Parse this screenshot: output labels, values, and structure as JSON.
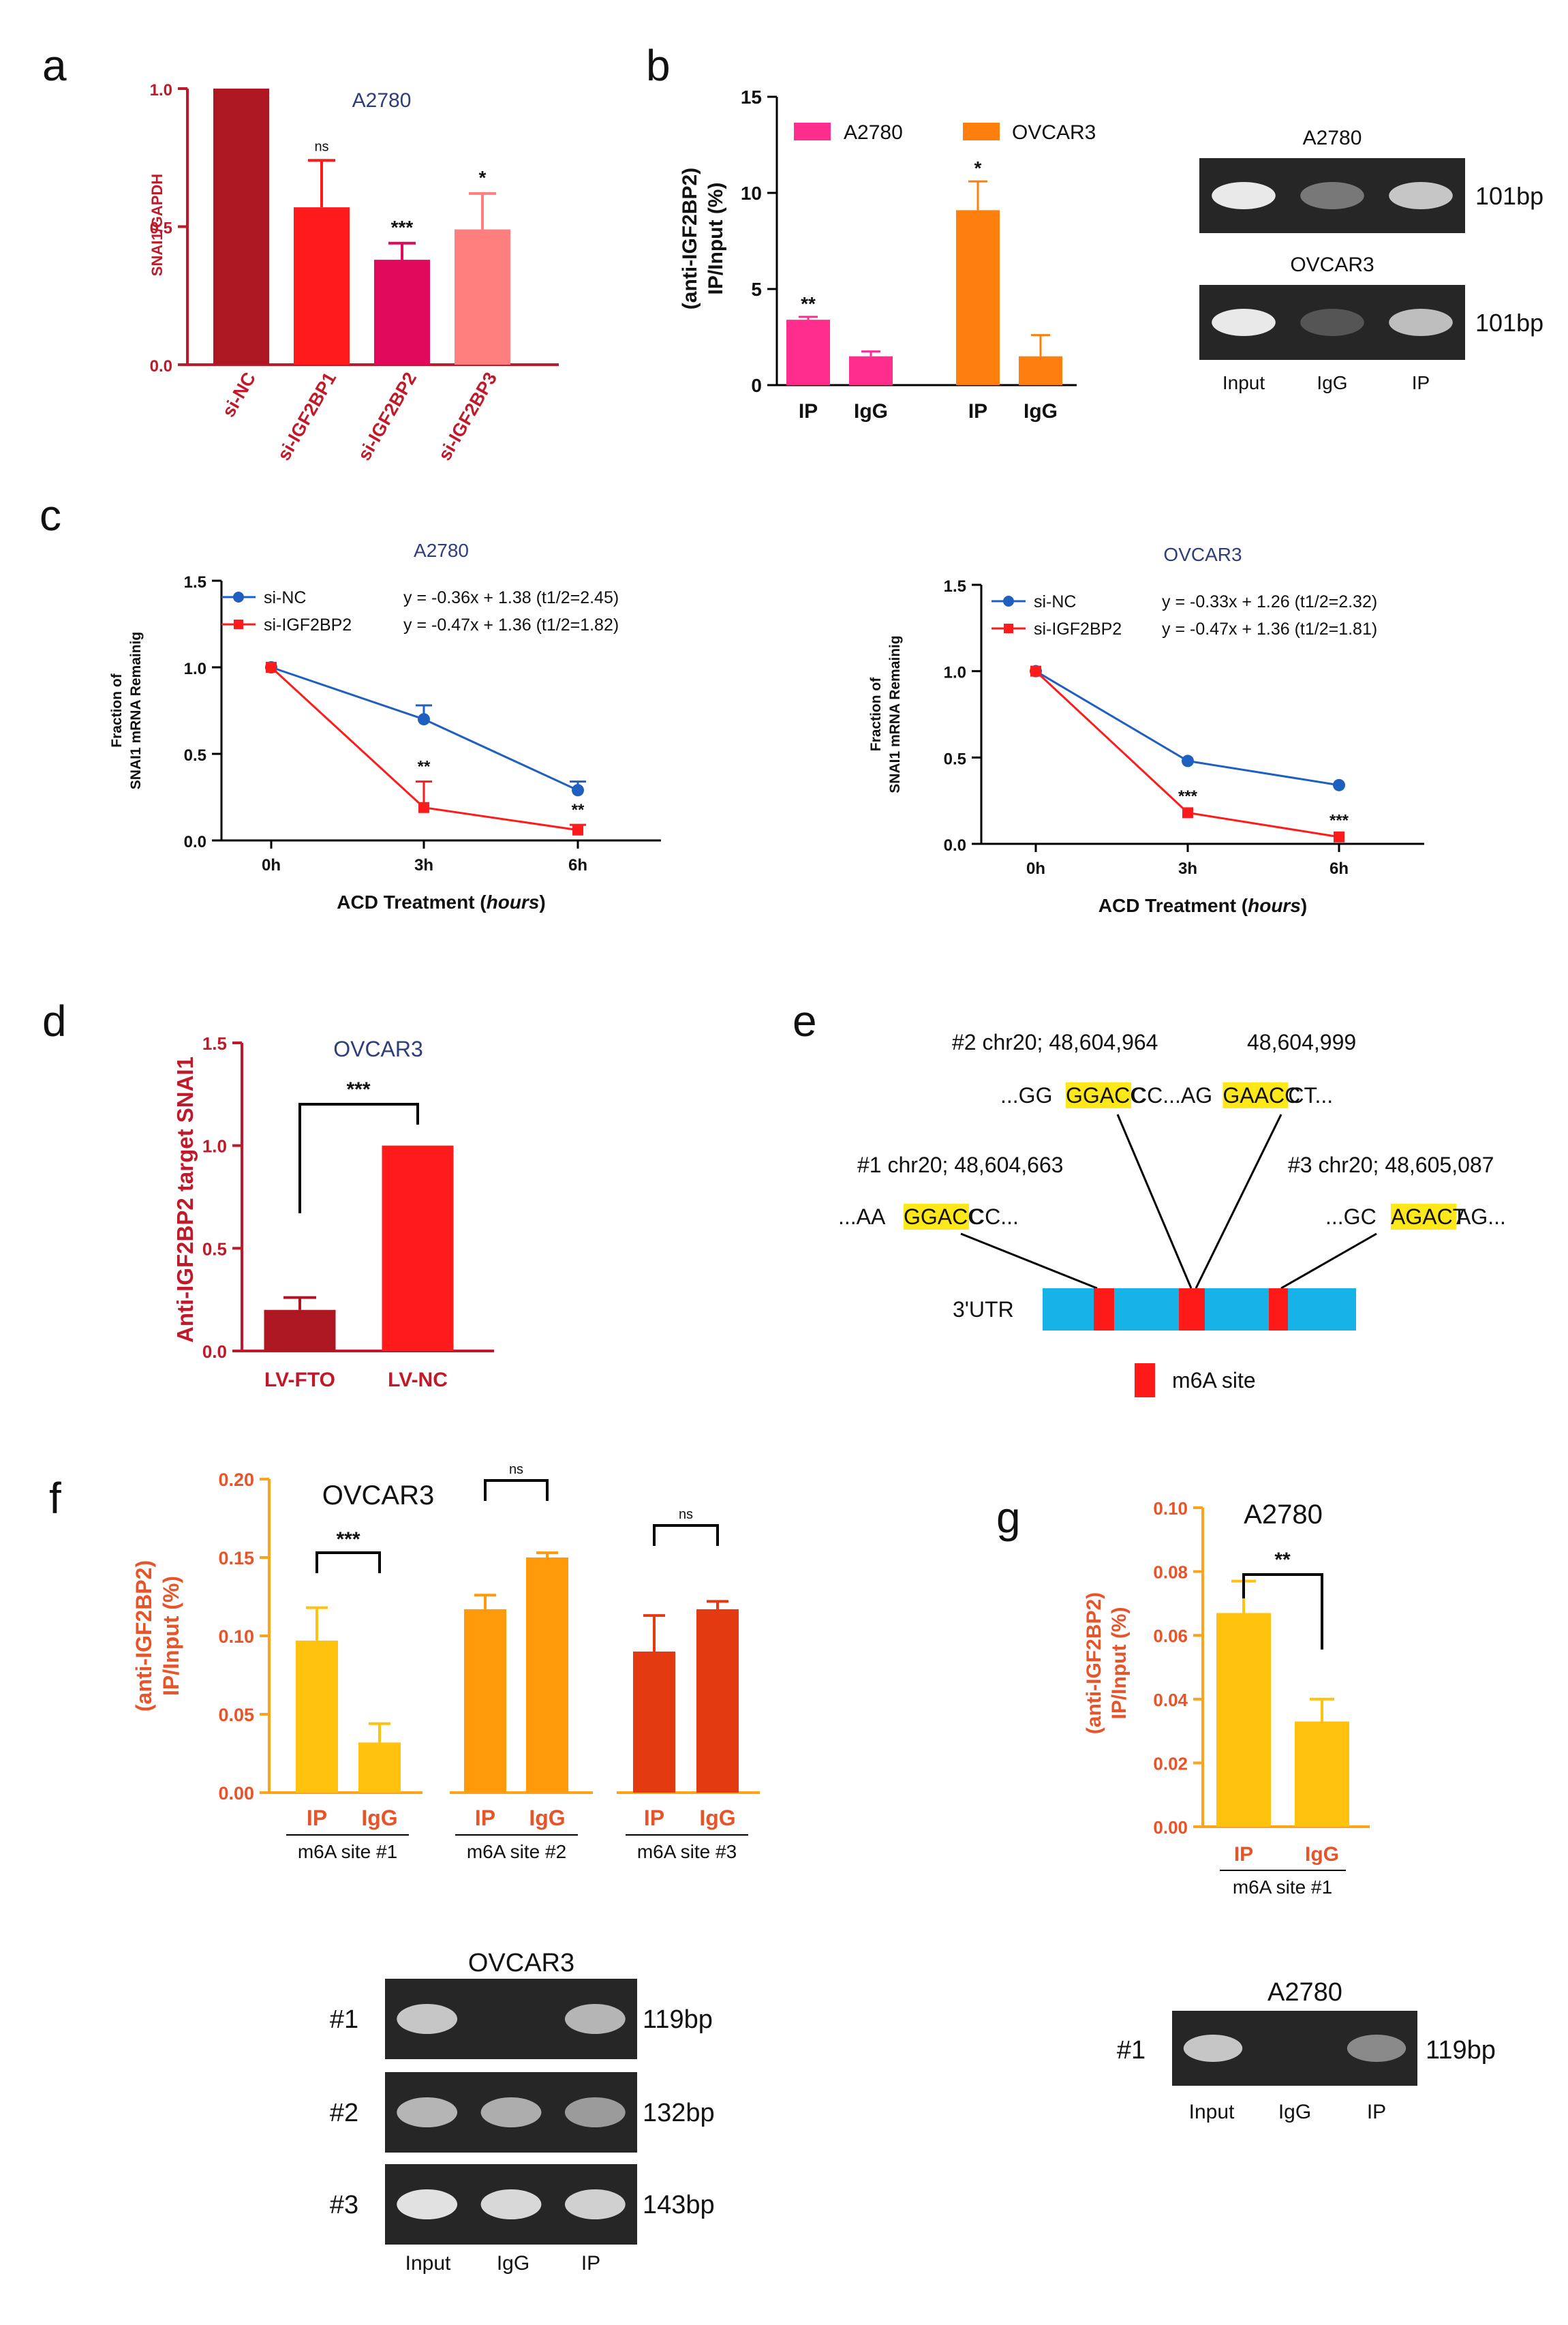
{
  "panel_labels": [
    "a",
    "b",
    "c",
    "d",
    "e",
    "f",
    "g"
  ],
  "colors": {
    "dark_red": "#ad1722",
    "red": "#ff1b1b",
    "crimson": "#e0095c",
    "salmon": "#ff7f7f",
    "pink": "#ff2e8e",
    "orange": "#ff7f0e",
    "blue": "#1f5fbf",
    "line_red": "#ff1b1b",
    "yellow": "#ffc20e",
    "orange2": "#ff9a0a",
    "brick": "#e33a12",
    "axis_red": "#c01a2a",
    "axis_orange": "#ffa31a",
    "label_orange": "#e8542a",
    "title_navy": "#2f3e7a",
    "utr_blue": "#17b2e6",
    "m6a_red": "#ff1a1a",
    "highlight": "#ffe81a"
  },
  "chart_data": [
    {
      "id": "a",
      "type": "bar",
      "title": "A2780",
      "ylabel": "SNAI1/GAPDH",
      "ylim": [
        0,
        1.0
      ],
      "yticks": [
        "0.0",
        "0.5",
        "1.0"
      ],
      "yticks_values": [
        0,
        0.5,
        1.0
      ],
      "categories": [
        "si-NC",
        "si-IGF2BP1",
        "si-IGF2BP2",
        "si-IGF2BP3"
      ],
      "values": [
        1.0,
        0.57,
        0.38,
        0.49
      ],
      "errors": [
        0,
        0.17,
        0.06,
        0.13
      ],
      "sig": [
        "",
        "ns",
        "***",
        "*"
      ]
    },
    {
      "id": "b",
      "type": "bar",
      "ylabel_line1": "(anti-IGF2BP2)",
      "ylabel_line2": "IP/Input (%)",
      "ylim": [
        0,
        15
      ],
      "yticks": [
        "0",
        "5",
        "10",
        "15"
      ],
      "yticks_values": [
        0,
        5,
        10,
        15
      ],
      "legend": [
        "A2780",
        "OVCAR3"
      ],
      "categories": [
        "IP",
        "IgG",
        "IP",
        "IgG"
      ],
      "values": [
        3.4,
        1.5,
        9.1,
        1.5
      ],
      "errors": [
        0.15,
        0.25,
        1.5,
        1.1
      ],
      "sig": [
        "**",
        "",
        "*",
        ""
      ]
    },
    {
      "id": "c1",
      "type": "line",
      "title": "A2780",
      "ylabel_line1": "Fraction of",
      "ylabel_line2": "SNAI1 mRNA Remainig",
      "xlabel_main": "ACD Treatment (",
      "xlabel_italic": "hours",
      "xlabel_end": ")",
      "ylim": [
        0,
        1.5
      ],
      "yticks": [
        "0.0",
        "0.5",
        "1.0",
        "1.5"
      ],
      "yticks_values": [
        0,
        0.5,
        1.0,
        1.5
      ],
      "x": [
        "0h",
        "3h",
        "6h"
      ],
      "series": [
        {
          "name": "si-NC",
          "values": [
            1.0,
            0.7,
            0.29
          ],
          "errors": [
            0,
            0.08,
            0.05
          ],
          "equation": "y = -0.36x + 1.38 (t1/2=2.45)"
        },
        {
          "name": "si-IGF2BP2",
          "values": [
            1.0,
            0.19,
            0.06
          ],
          "errors": [
            0,
            0.15,
            0.03
          ],
          "equation": "y = -0.47x + 1.36 (t1/2=1.82)"
        }
      ],
      "sig": [
        "",
        "**",
        "**"
      ]
    },
    {
      "id": "c2",
      "type": "line",
      "title": "OVCAR3",
      "ylabel_line1": "Fraction of",
      "ylabel_line2": "SNAI1 mRNA Remainig",
      "xlabel_main": "ACD Treatment (",
      "xlabel_italic": "hours",
      "xlabel_end": ")",
      "ylim": [
        0,
        1.5
      ],
      "yticks": [
        "0.0",
        "0.5",
        "1.0",
        "1.5"
      ],
      "yticks_values": [
        0,
        0.5,
        1.0,
        1.5
      ],
      "x": [
        "0h",
        "3h",
        "6h"
      ],
      "series": [
        {
          "name": "si-NC",
          "values": [
            1.0,
            0.48,
            0.34
          ],
          "errors": [
            0,
            0.01,
            0.01
          ],
          "equation": "y = -0.33x + 1.26 (t1/2=2.32)"
        },
        {
          "name": "si-IGF2BP2",
          "values": [
            1.0,
            0.18,
            0.04
          ],
          "errors": [
            0,
            0.01,
            0.01
          ],
          "equation": "y = -0.47x + 1.36 (t1/2=1.81)"
        }
      ],
      "sig": [
        "",
        "***",
        "***"
      ]
    },
    {
      "id": "d",
      "type": "bar",
      "title": "OVCAR3",
      "ylabel": "Anti-IGF2BP2 target SNAI1",
      "ylim": [
        0,
        1.5
      ],
      "yticks": [
        "0.0",
        "0.5",
        "1.0",
        "1.5"
      ],
      "yticks_values": [
        0,
        0.5,
        1.0,
        1.5
      ],
      "categories": [
        "LV-FTO",
        "LV-NC"
      ],
      "values": [
        0.2,
        1.0
      ],
      "errors": [
        0.06,
        0
      ],
      "sig": "***"
    },
    {
      "id": "f",
      "type": "bar",
      "title": "OVCAR3",
      "ylabel_line1": "(anti-IGF2BP2)",
      "ylabel_line2": "IP/Input (%)",
      "ylim": [
        0,
        0.2
      ],
      "yticks": [
        "0.00",
        "0.05",
        "0.10",
        "0.15",
        "0.20"
      ],
      "yticks_values": [
        0,
        0.05,
        0.1,
        0.15,
        0.2
      ],
      "categories": [
        "IP",
        "IgG",
        "IP",
        "IgG",
        "IP",
        "IgG"
      ],
      "values": [
        0.097,
        0.032,
        0.117,
        0.15,
        0.09,
        0.117
      ],
      "errors": [
        0.021,
        0.012,
        0.009,
        0.003,
        0.023,
        0.005
      ],
      "groups": [
        "m6A site #1",
        "m6A site #2",
        "m6A site #3"
      ],
      "sig": [
        "***",
        "ns",
        "ns"
      ]
    },
    {
      "id": "g",
      "type": "bar",
      "title": "A2780",
      "ylabel_line1": "(anti-IGF2BP2)",
      "ylabel_line2": "IP/Input (%)",
      "ylim": [
        0,
        0.1
      ],
      "yticks": [
        "0.00",
        "0.02",
        "0.04",
        "0.06",
        "0.08",
        "0.10"
      ],
      "yticks_values": [
        0,
        0.02,
        0.04,
        0.06,
        0.08,
        0.1
      ],
      "categories": [
        "IP",
        "IgG"
      ],
      "values": [
        0.067,
        0.033
      ],
      "errors": [
        0.01,
        0.007
      ],
      "groups": [
        "m6A site #1"
      ],
      "sig": "**"
    }
  ],
  "gel_b": {
    "rows": [
      {
        "title": "A2780",
        "size": "101bp",
        "bands": [
          1.0,
          0.35,
          0.8
        ]
      },
      {
        "title": "OVCAR3",
        "size": "101bp",
        "bands": [
          1.0,
          0.15,
          0.75
        ]
      }
    ],
    "lanes": [
      "Input",
      "IgG",
      "IP"
    ]
  },
  "gel_f": {
    "title": "OVCAR3",
    "rows": [
      {
        "label": "#1",
        "size": "119bp",
        "bands": [
          0.8,
          0.0,
          0.7
        ]
      },
      {
        "label": "#2",
        "size": "132bp",
        "bands": [
          0.7,
          0.65,
          0.55
        ]
      },
      {
        "label": "#3",
        "size": "143bp",
        "bands": [
          0.95,
          0.9,
          0.85
        ]
      }
    ],
    "lanes": [
      "Input",
      "IgG",
      "IP"
    ]
  },
  "gel_g": {
    "title": "A2780",
    "rows": [
      {
        "label": "#1",
        "size": "119bp",
        "bands": [
          0.8,
          0.0,
          0.45
        ]
      }
    ],
    "lanes": [
      "Input",
      "IgG",
      "IP"
    ]
  },
  "panel_e": {
    "site2": "#2 chr20; 48,604,964",
    "site2b": "48,604,999",
    "seq2": [
      {
        "t": "...GG",
        "h": false
      },
      {
        "t": "GGACC",
        "h": true
      },
      {
        "t": "CC...AG",
        "h": false
      },
      {
        "t": "GAACC",
        "h": true
      },
      {
        "t": "CT...",
        "h": false
      }
    ],
    "site1": "#1 chr20; 48,604,663",
    "seq1": [
      {
        "t": "...AA",
        "h": false
      },
      {
        "t": "GGACC",
        "h": true
      },
      {
        "t": "CC...",
        "h": false
      }
    ],
    "site3": "#3 chr20; 48,605,087",
    "seq3": [
      {
        "t": "...GC",
        "h": false
      },
      {
        "t": "AGACT",
        "h": true
      },
      {
        "t": "AG...",
        "h": false
      }
    ],
    "utr_label": "3'UTR",
    "legend": "m6A site"
  }
}
